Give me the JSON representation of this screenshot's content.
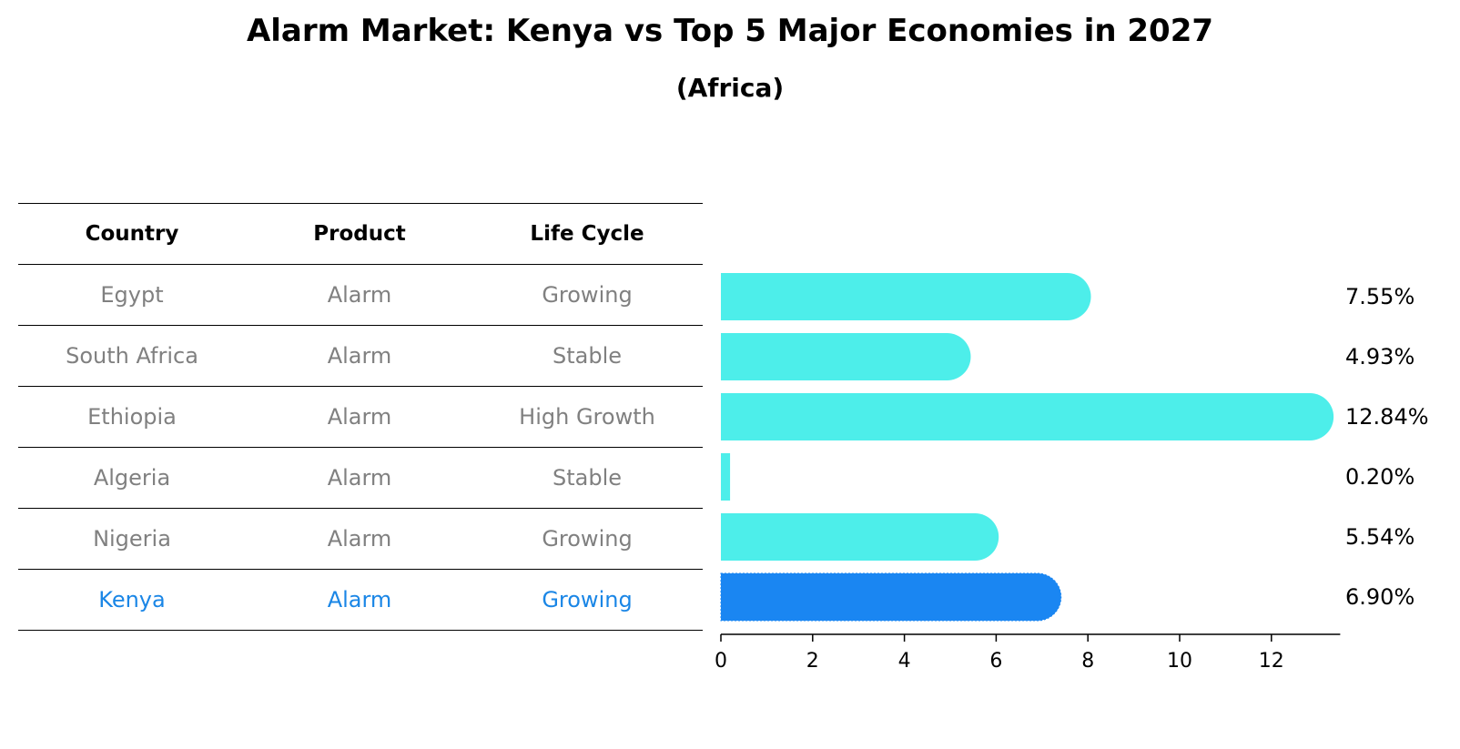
{
  "title": "Alarm Market: Kenya vs Top 5 Major Economies in 2027",
  "subtitle": "(Africa)",
  "table": {
    "headers": [
      "Country",
      "Product",
      "Life Cycle"
    ],
    "rows": [
      {
        "country": "Egypt",
        "product": "Alarm",
        "life_cycle": "Growing"
      },
      {
        "country": "South Africa",
        "product": "Alarm",
        "life_cycle": "Stable"
      },
      {
        "country": "Ethiopia",
        "product": "Alarm",
        "life_cycle": "High Growth"
      },
      {
        "country": "Algeria",
        "product": "Alarm",
        "life_cycle": "Stable"
      },
      {
        "country": "Nigeria",
        "product": "Alarm",
        "life_cycle": "Growing"
      },
      {
        "country": "Kenya",
        "product": "Alarm",
        "life_cycle": "Growing"
      }
    ]
  },
  "chart_data": {
    "type": "bar",
    "orientation": "horizontal",
    "categories": [
      "Egypt",
      "South Africa",
      "Ethiopia",
      "Algeria",
      "Nigeria",
      "Kenya"
    ],
    "values": [
      7.55,
      4.93,
      12.84,
      0.2,
      5.54,
      6.9
    ],
    "value_labels": [
      "7.55%",
      "4.93%",
      "12.84%",
      "0.20%",
      "5.54%",
      "6.90%"
    ],
    "highlight": "Kenya",
    "xlim": [
      0,
      13.5
    ],
    "xticks": [
      0,
      2,
      4,
      6,
      8,
      10,
      12
    ],
    "grid": false,
    "colors": {
      "bar": "#4deeea",
      "highlight": "#1a86f2"
    }
  }
}
